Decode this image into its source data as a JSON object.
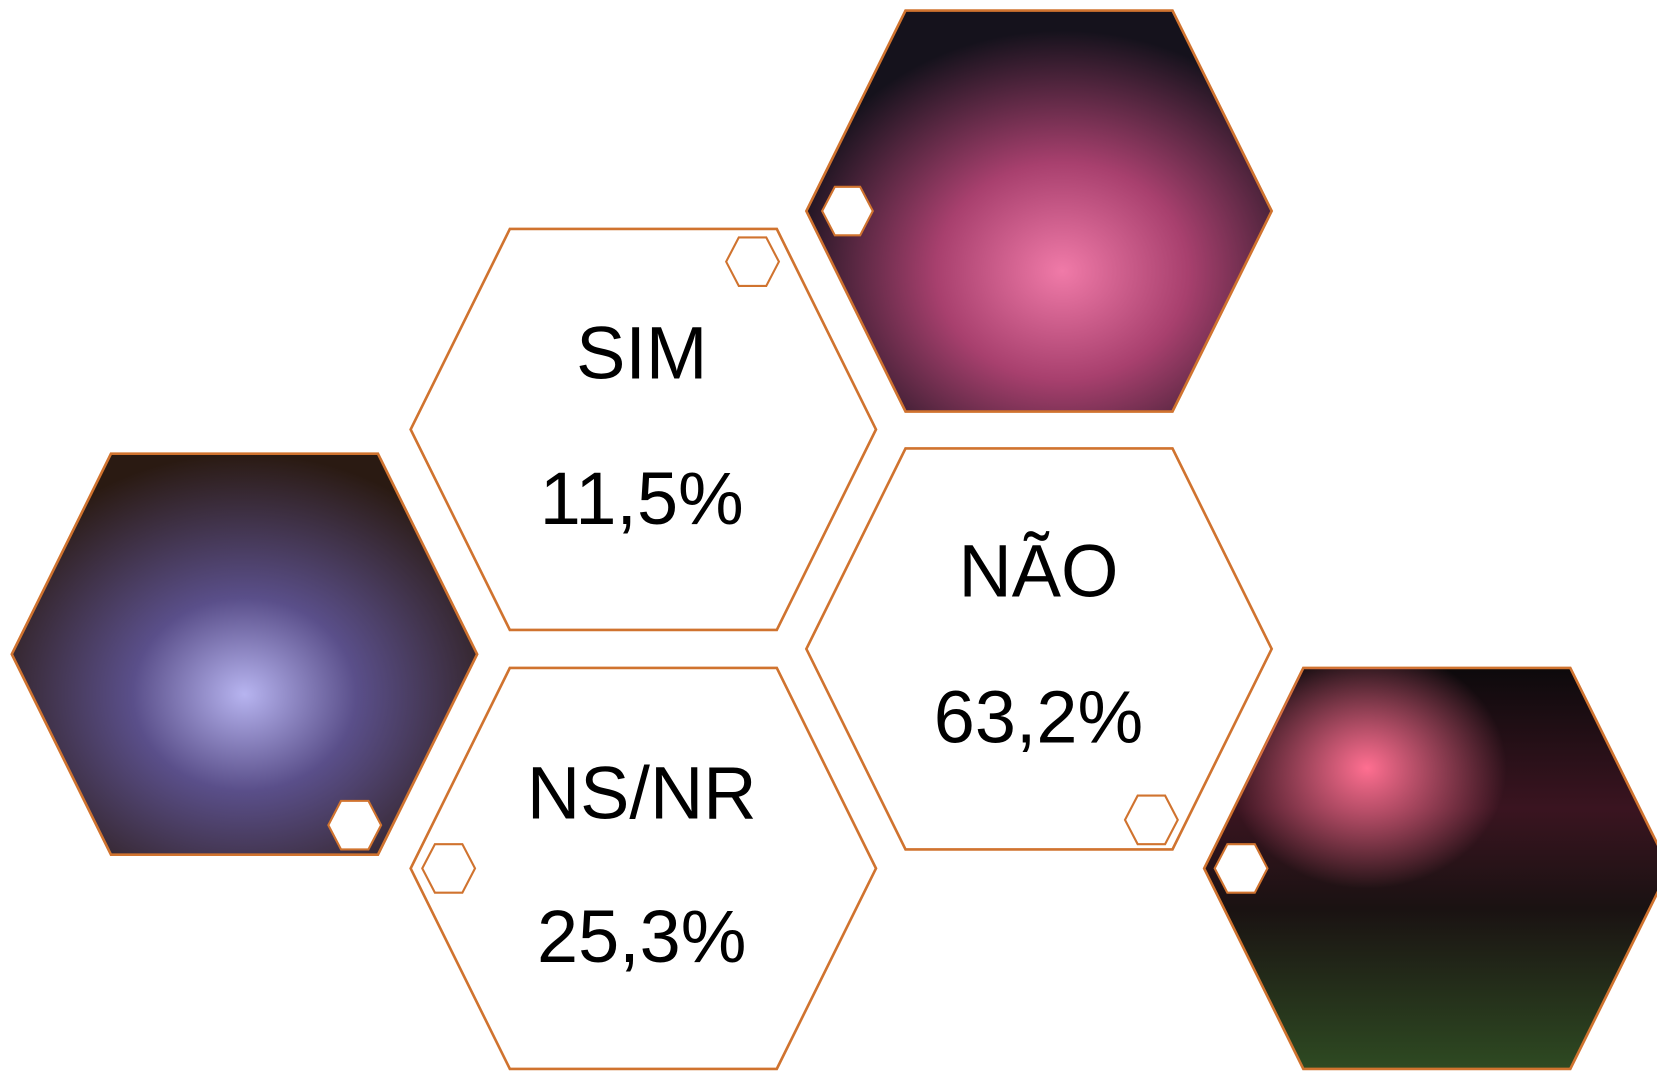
{
  "items": [
    {
      "label": "SIM",
      "value": "11,5%"
    },
    {
      "label": "NÃO",
      "value": "63,2%"
    },
    {
      "label": "NS/NR",
      "value": "25,3%"
    }
  ]
}
